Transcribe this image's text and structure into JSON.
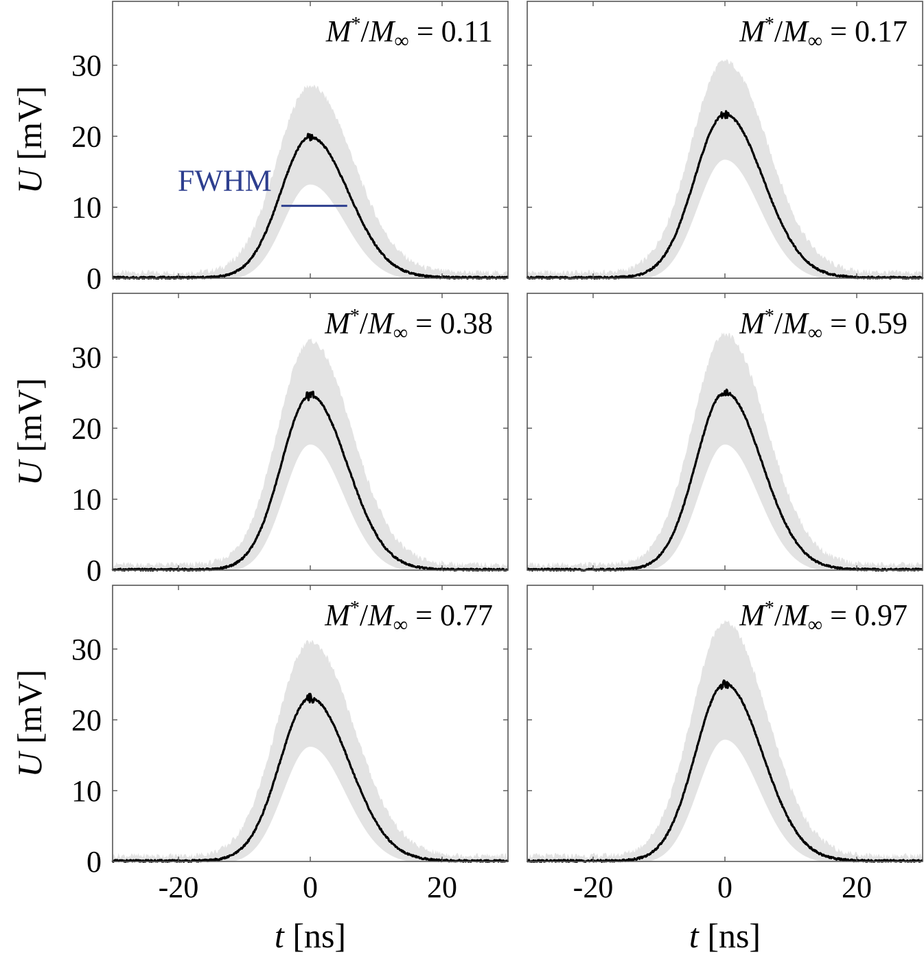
{
  "figure": {
    "x_label_var": "t",
    "x_label_unit": "[ns]",
    "y_label_var": "U",
    "y_label_unit": "[mV]",
    "annotation_label": "FWHM",
    "annotation_color": "#2e3f8f",
    "band_color": "#e3e3e3",
    "line_color": "#000000"
  },
  "chart_data": [
    {
      "type": "line",
      "panel": "top-left",
      "ratio_label": "= 0.11",
      "ratio_num": "M",
      "ratio_sup": "*",
      "ratio_den": "M",
      "ratio_sub": "∞",
      "peak_mV": 19.8,
      "sigma_left_ns": 4.5,
      "sigma_right_ns": 5.8,
      "band_upper_peak_mV": 26.3,
      "band_lower_peak_mV": 13.5,
      "fwhm_ns": [
        -4.4,
        5.6
      ],
      "fwhm_level_mV": 10.2,
      "xlim": [
        -30,
        30
      ],
      "ylim": [
        0,
        39
      ],
      "xticks": [
        -20,
        0,
        20
      ],
      "yticks": [
        0,
        10,
        20,
        30
      ]
    },
    {
      "type": "line",
      "panel": "top-right",
      "ratio_label": "= 0.17",
      "ratio_num": "M",
      "ratio_sup": "*",
      "ratio_den": "M",
      "ratio_sub": "∞",
      "peak_mV": 23.0,
      "sigma_left_ns": 4.6,
      "sigma_right_ns": 5.8,
      "band_upper_peak_mV": 29.8,
      "band_lower_peak_mV": 17.0,
      "xlim": [
        -30,
        30
      ],
      "ylim": [
        0,
        39
      ],
      "xticks": [
        -20,
        0,
        20
      ],
      "yticks": [
        0,
        10,
        20,
        30
      ]
    },
    {
      "type": "line",
      "panel": "middle-left",
      "ratio_label": "= 0.38",
      "ratio_num": "M",
      "ratio_sup": "*",
      "ratio_den": "M",
      "ratio_sub": "∞",
      "peak_mV": 24.5,
      "sigma_left_ns": 4.4,
      "sigma_right_ns": 5.6,
      "band_upper_peak_mV": 31.5,
      "band_lower_peak_mV": 18.0,
      "xlim": [
        -30,
        30
      ],
      "ylim": [
        0,
        39
      ],
      "xticks": [
        -20,
        0,
        20
      ],
      "yticks": [
        0,
        10,
        20,
        30
      ]
    },
    {
      "type": "line",
      "panel": "middle-right",
      "ratio_label": "= 0.59",
      "ratio_num": "M",
      "ratio_sup": "*",
      "ratio_den": "M",
      "ratio_sub": "∞",
      "peak_mV": 25.0,
      "sigma_left_ns": 4.4,
      "sigma_right_ns": 5.6,
      "band_upper_peak_mV": 32.5,
      "band_lower_peak_mV": 18.0,
      "xlim": [
        -30,
        30
      ],
      "ylim": [
        0,
        39
      ],
      "xticks": [
        -20,
        0,
        20
      ],
      "yticks": [
        0,
        10,
        20,
        30
      ]
    },
    {
      "type": "line",
      "panel": "bottom-left",
      "ratio_label": "= 0.77",
      "ratio_num": "M",
      "ratio_sup": "*",
      "ratio_den": "M",
      "ratio_sub": "∞",
      "peak_mV": 23.0,
      "sigma_left_ns": 4.6,
      "sigma_right_ns": 5.9,
      "band_upper_peak_mV": 30.2,
      "band_lower_peak_mV": 16.5,
      "xlim": [
        -30,
        30
      ],
      "ylim": [
        0,
        39
      ],
      "xticks": [
        -20,
        0,
        20
      ],
      "yticks": [
        0,
        10,
        20,
        30
      ]
    },
    {
      "type": "line",
      "panel": "bottom-right",
      "ratio_label": "= 0.97",
      "ratio_num": "M",
      "ratio_sup": "*",
      "ratio_den": "M",
      "ratio_sub": "∞",
      "peak_mV": 25.0,
      "sigma_left_ns": 4.5,
      "sigma_right_ns": 5.7,
      "band_upper_peak_mV": 33.0,
      "band_lower_peak_mV": 17.5,
      "xlim": [
        -30,
        30
      ],
      "ylim": [
        0,
        39
      ],
      "xticks": [
        -20,
        0,
        20
      ],
      "yticks": [
        0,
        10,
        20,
        30
      ]
    }
  ]
}
